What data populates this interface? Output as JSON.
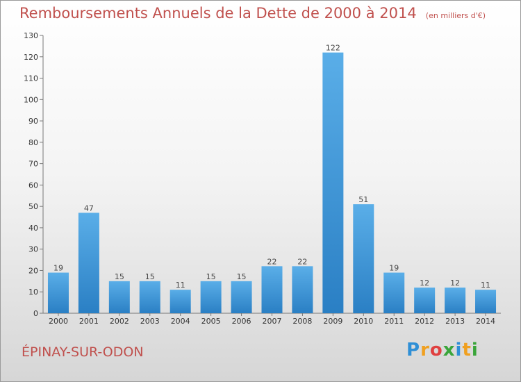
{
  "chart_data": {
    "type": "bar",
    "title": "Remboursements Annuels de la Dette de 2000 à 2014",
    "subtitle": "(en milliers d'€)",
    "categories": [
      "2000",
      "2001",
      "2002",
      "2003",
      "2004",
      "2005",
      "2006",
      "2007",
      "2008",
      "2009",
      "2010",
      "2011",
      "2012",
      "2013",
      "2014"
    ],
    "values": [
      19,
      47,
      15,
      15,
      11,
      15,
      15,
      22,
      22,
      122,
      51,
      19,
      12,
      12,
      11
    ],
    "xlabel": "",
    "ylabel": "",
    "ylim": [
      0,
      130
    ],
    "yticks": [
      0,
      10,
      20,
      30,
      40,
      50,
      60,
      70,
      80,
      90,
      100,
      110,
      120,
      130
    ],
    "grid": false,
    "legend": "none",
    "bar_color_top": "#5aaee8",
    "bar_color_bottom": "#2a7fc4"
  },
  "commune": "ÉPINAY-SUR-ODON",
  "logo": {
    "letters": [
      "P",
      "r",
      "o",
      "x",
      "i",
      "t",
      "i"
    ],
    "colors": [
      "#2f8fd6",
      "#f0a020",
      "#e04040",
      "#3aa53a",
      "#2f8fd6",
      "#f0a020",
      "#3aa53a"
    ]
  }
}
